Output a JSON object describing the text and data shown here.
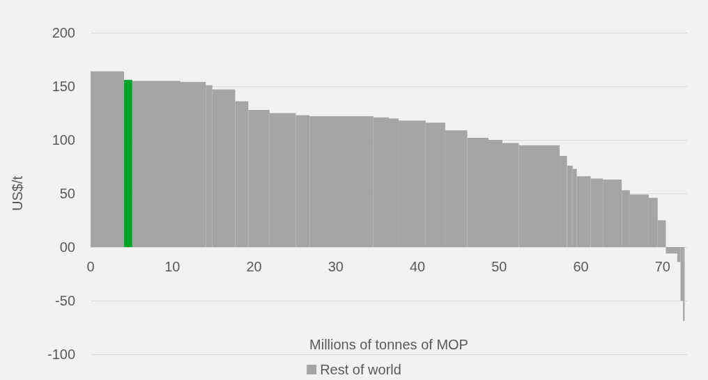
{
  "chart_data": {
    "type": "histogram",
    "xlabel": "Millions of tonnes of MOP",
    "ylabel": "US$/t",
    "bins": [
      0,
      4.1,
      5.1,
      11.0,
      14.1,
      14.9,
      17.7,
      19.3,
      21.9,
      25.1,
      26.8,
      34.6,
      36.5,
      37.7,
      41.0,
      43.4,
      46.1,
      48.7,
      50.4,
      52.4,
      57.4,
      58.3,
      59.0,
      59.5,
      61.2,
      62.7,
      65.0,
      66.0,
      68.3,
      69.4,
      70.4,
      71.8,
      72.2,
      72.5,
      72.7
    ],
    "series": [
      {
        "name": "Rest of world",
        "color": "#a5a5a5",
        "values": [
          164,
          null,
          155,
          154,
          151,
          147,
          136,
          128,
          125,
          123,
          122,
          121,
          120,
          118,
          116,
          109,
          102,
          100,
          97,
          95,
          85,
          76,
          73,
          66,
          64,
          63,
          53,
          49,
          46,
          25,
          -6,
          -14,
          -50,
          -69
        ]
      },
      {
        "color": "#00a526",
        "values": [
          null,
          156,
          null,
          null,
          null,
          null,
          null,
          null,
          null,
          null,
          null,
          null,
          null,
          null,
          null,
          null,
          null,
          null,
          null,
          null,
          null,
          null,
          null,
          null,
          null,
          null,
          null,
          null,
          null,
          null,
          null,
          null,
          null,
          null
        ]
      }
    ],
    "xlim": [
      0,
      73
    ],
    "xticks": [
      0,
      10,
      20,
      30,
      40,
      50,
      60,
      70
    ],
    "ylim": [
      -100,
      200
    ],
    "yticks": [
      -100,
      -50,
      {
        "value": 0,
        "label": "00"
      },
      50,
      100,
      150,
      200
    ],
    "grid": "y",
    "legend": "bottom"
  }
}
